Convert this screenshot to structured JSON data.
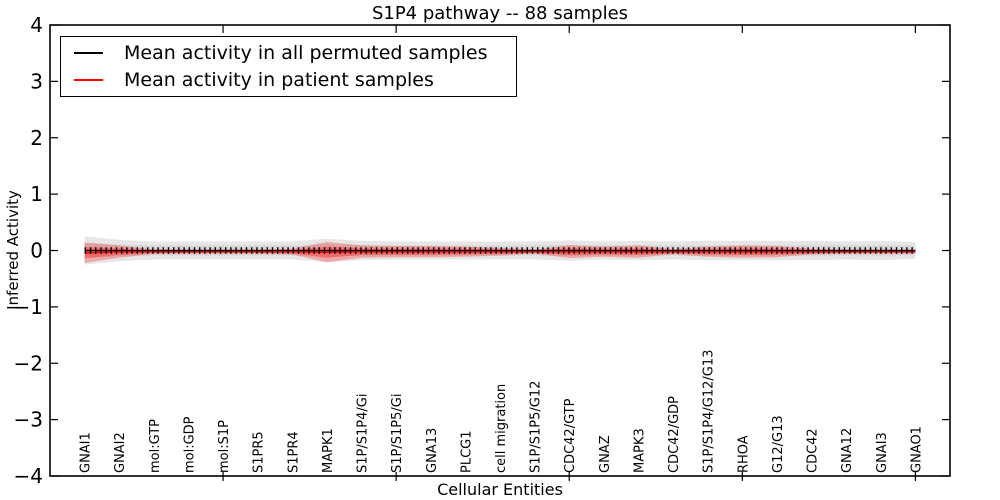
{
  "title": "S1P4 pathway -- 88 samples",
  "axes": {
    "x_label": "Cellular Entities",
    "y_label": "Inferred Activity",
    "y_min": -4,
    "y_max": 4,
    "y_tick_step": 1,
    "x_tick_positions": [
      5,
      10,
      15,
      20,
      25
    ]
  },
  "legend": {
    "items": [
      {
        "label": "Mean activity in all permuted samples",
        "color": "#000000"
      },
      {
        "label": "Mean activity in patient samples",
        "color": "#ff0000"
      }
    ]
  },
  "colors": {
    "permuted_line": "#000000",
    "patient_line": "#ff0000",
    "permuted_band": "rgba(128,128,128,0.20)",
    "permuted_band_core": "rgba(128,128,128,0.16)",
    "patient_band": "rgba(255,0,0,0.27)",
    "patient_band_core": "rgba(255,0,0,0.30)",
    "axis": "#000000"
  },
  "chart_data": {
    "type": "area",
    "title": "S1P4 pathway -- 88 samples",
    "xlabel": "Cellular Entities",
    "ylabel": "Inferred Activity",
    "ylim": [
      -4,
      4
    ],
    "xlim": [
      0,
      26
    ],
    "grid": false,
    "legend_position": "upper left",
    "categories": [
      "GNAI1",
      "GNAI2",
      "mol:GTP",
      "mol:GDP",
      "mol:S1P",
      "S1PR5",
      "S1PR4",
      "MAPK1",
      "S1P/S1P4/Gi",
      "S1P/S1P5/Gi",
      "GNA13",
      "PLCG1",
      "cell migration",
      "S1P/S1P5/G12",
      "CDC42/GTP",
      "GNAZ",
      "MAPK3",
      "CDC42/GDP",
      "S1P/S1P4/G12/G13",
      "RHOA",
      "G12/G13",
      "CDC42",
      "GNA12",
      "GNAI3",
      "GNAO1"
    ],
    "series": [
      {
        "name": "Mean activity in all permuted samples",
        "kind": "line",
        "color": "#000000",
        "values": [
          0,
          0,
          0,
          0,
          0,
          0,
          0,
          0,
          0,
          0,
          0,
          0,
          0,
          0,
          0,
          0,
          0,
          0,
          0,
          0,
          0,
          0,
          0,
          0,
          0
        ]
      },
      {
        "name": "Mean activity in patient samples",
        "kind": "line",
        "color": "#ff0000",
        "values": [
          -0.04,
          -0.02,
          -0.02,
          -0.02,
          -0.02,
          -0.02,
          -0.02,
          -0.03,
          -0.02,
          -0.02,
          -0.02,
          -0.02,
          -0.02,
          -0.02,
          -0.02,
          -0.02,
          -0.02,
          -0.02,
          -0.02,
          -0.02,
          -0.02,
          -0.02,
          -0.02,
          -0.02,
          -0.02
        ]
      },
      {
        "name": "Permuted samples spread (half-width around mean)",
        "kind": "band",
        "color": "gray",
        "halfwidths": [
          0.25,
          0.19,
          0.16,
          0.16,
          0.16,
          0.16,
          0.16,
          0.21,
          0.17,
          0.16,
          0.16,
          0.16,
          0.16,
          0.16,
          0.18,
          0.16,
          0.17,
          0.16,
          0.17,
          0.17,
          0.17,
          0.17,
          0.16,
          0.17,
          0.15
        ]
      },
      {
        "name": "Patient samples spread (half-width around mean)",
        "kind": "band",
        "color": "red",
        "halfwidths": [
          0.18,
          0.11,
          0.04,
          0.035,
          0.035,
          0.035,
          0.05,
          0.18,
          0.11,
          0.1,
          0.1,
          0.09,
          0.07,
          0.035,
          0.115,
          0.09,
          0.11,
          0.045,
          0.09,
          0.11,
          0.1,
          0.05,
          0.035,
          0.035,
          0.035
        ]
      }
    ]
  }
}
